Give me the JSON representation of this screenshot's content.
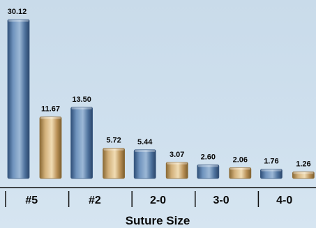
{
  "chart_data": {
    "type": "bar",
    "categories": [
      "#5",
      "#2",
      "2-0",
      "3-0",
      "4-0"
    ],
    "series": [
      {
        "values": [
          30.12,
          13.5,
          5.44,
          2.6,
          1.76
        ],
        "color": "#5b7fa8"
      },
      {
        "values": [
          11.67,
          5.72,
          3.07,
          2.06,
          1.26
        ],
        "color": "#c8a66e"
      }
    ],
    "value_labels": [
      [
        "30.12",
        "13.50",
        "5.44",
        "2.60",
        "1.76"
      ],
      [
        "11.67",
        "5.72",
        "3.07",
        "2.06",
        "1.26"
      ]
    ],
    "title": "",
    "xlabel": "Suture Size",
    "ylabel": "",
    "ylim": [
      0,
      32
    ],
    "grid": false,
    "legend": "none"
  }
}
